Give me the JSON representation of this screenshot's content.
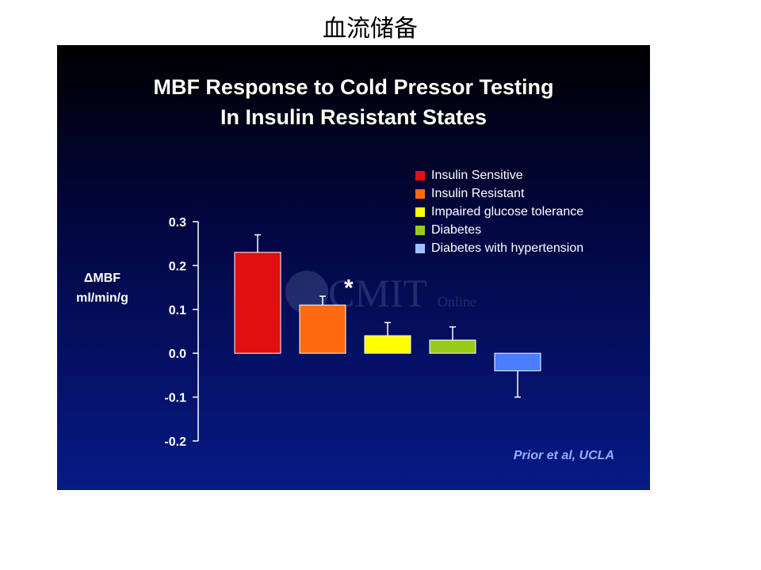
{
  "page": {
    "heading": "血流储备"
  },
  "watermark": {
    "main": "CMIT",
    "sub": "Online"
  },
  "credit": "Prior et al, UCLA",
  "chart_data": {
    "type": "bar",
    "title_lines": [
      "MBF Response to Cold Pressor Testing",
      "In Insulin Resistant States"
    ],
    "ylabel_lines": [
      "ΔMBF",
      "ml/min/g"
    ],
    "xlabel": "",
    "ylim": [
      -0.2,
      0.3
    ],
    "yticks": [
      0.3,
      0.2,
      0.1,
      0.0,
      -0.1,
      -0.2
    ],
    "ytick_labels": [
      "0.3",
      "0.2",
      "0.1",
      "0.0",
      "-0.1",
      "-0.2"
    ],
    "grid": false,
    "legend_position": "top-right",
    "series": [
      {
        "name": "Insulin Sensitive",
        "value": 0.23,
        "error": 0.04,
        "color": "#e01010"
      },
      {
        "name": "Insulin Resistant",
        "value": 0.11,
        "error": 0.02,
        "color": "#ff6a10",
        "annotation": "*"
      },
      {
        "name": "Impaired glucose tolerance",
        "value": 0.04,
        "error": 0.03,
        "color": "#ffff00"
      },
      {
        "name": "Diabetes",
        "value": 0.03,
        "error": 0.03,
        "color": "#99cc1a"
      },
      {
        "name": "Diabetes with hypertension",
        "value": -0.04,
        "error": 0.06,
        "color": "#4a7dff",
        "legend_color": "#9cc2ff"
      }
    ]
  }
}
